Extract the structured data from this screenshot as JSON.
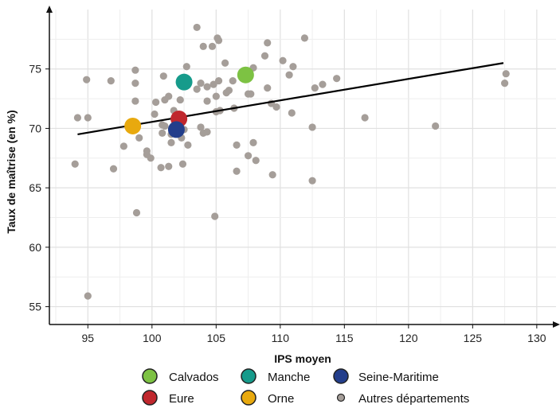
{
  "chart_data": {
    "type": "scatter",
    "xlabel": "IPS moyen",
    "ylabel": "Taux de maîtrise (en %)",
    "xlim": [
      92,
      131.5
    ],
    "ylim": [
      53.5,
      80
    ],
    "x_ticks": [
      95,
      100,
      105,
      110,
      115,
      120,
      125,
      130
    ],
    "y_ticks": [
      55,
      60,
      65,
      70,
      75
    ],
    "grid": true,
    "highlight": [
      {
        "name": "Calvados",
        "color": "#7dc243",
        "x": 107.3,
        "y": 74.5
      },
      {
        "name": "Manche",
        "color": "#169b8b",
        "x": 102.5,
        "y": 73.9
      },
      {
        "name": "Eure",
        "color": "#c0272d",
        "x": 102.1,
        "y": 70.8
      },
      {
        "name": "Orne",
        "color": "#e8a90e",
        "x": 98.5,
        "y": 70.2
      },
      {
        "name": "Seine-Maritime",
        "color": "#233e8b",
        "x": 101.9,
        "y": 69.9
      }
    ],
    "others": {
      "name": "Autres départements",
      "color": "#a59e99",
      "points": [
        [
          94.0,
          67.0
        ],
        [
          94.2,
          70.9
        ],
        [
          94.9,
          74.1
        ],
        [
          95.0,
          70.9
        ],
        [
          95.0,
          55.9
        ],
        [
          96.8,
          74.0
        ],
        [
          97.0,
          66.6
        ],
        [
          97.8,
          68.5
        ],
        [
          98.7,
          74.9
        ],
        [
          98.7,
          73.8
        ],
        [
          98.7,
          72.3
        ],
        [
          98.8,
          62.9
        ],
        [
          99.0,
          69.2
        ],
        [
          99.6,
          68.1
        ],
        [
          99.6,
          67.8
        ],
        [
          99.9,
          67.5
        ],
        [
          100.2,
          71.2
        ],
        [
          100.3,
          72.2
        ],
        [
          100.7,
          66.7
        ],
        [
          100.8,
          70.3
        ],
        [
          100.8,
          69.6
        ],
        [
          100.9,
          74.4
        ],
        [
          101.0,
          72.4
        ],
        [
          101.0,
          70.2
        ],
        [
          101.3,
          66.8
        ],
        [
          101.3,
          72.7
        ],
        [
          101.5,
          69.5
        ],
        [
          101.5,
          68.8
        ],
        [
          101.7,
          71.5
        ],
        [
          102.0,
          70.9
        ],
        [
          102.2,
          72.4
        ],
        [
          102.3,
          69.2
        ],
        [
          102.4,
          67.0
        ],
        [
          102.5,
          69.9
        ],
        [
          102.7,
          75.2
        ],
        [
          102.8,
          68.6
        ],
        [
          103.5,
          78.5
        ],
        [
          103.5,
          73.3
        ],
        [
          103.8,
          73.8
        ],
        [
          103.8,
          70.1
        ],
        [
          104.0,
          76.9
        ],
        [
          104.0,
          69.6
        ],
        [
          104.3,
          73.5
        ],
        [
          104.3,
          72.3
        ],
        [
          104.3,
          69.7
        ],
        [
          104.7,
          76.9
        ],
        [
          104.8,
          73.7
        ],
        [
          104.9,
          62.6
        ],
        [
          105.0,
          72.7
        ],
        [
          105.0,
          71.4
        ],
        [
          105.1,
          77.6
        ],
        [
          105.2,
          77.4
        ],
        [
          105.2,
          74.0
        ],
        [
          105.3,
          71.5
        ],
        [
          105.7,
          75.5
        ],
        [
          105.8,
          73.0
        ],
        [
          106.0,
          73.2
        ],
        [
          106.3,
          74.0
        ],
        [
          106.4,
          71.7
        ],
        [
          106.6,
          68.6
        ],
        [
          106.6,
          66.4
        ],
        [
          107.5,
          72.9
        ],
        [
          107.5,
          67.7
        ],
        [
          107.7,
          72.9
        ],
        [
          107.9,
          75.1
        ],
        [
          107.9,
          68.8
        ],
        [
          108.1,
          67.3
        ],
        [
          108.8,
          76.1
        ],
        [
          109.0,
          77.2
        ],
        [
          109.0,
          73.4
        ],
        [
          109.3,
          72.1
        ],
        [
          109.4,
          66.1
        ],
        [
          109.7,
          71.8
        ],
        [
          110.2,
          75.7
        ],
        [
          110.7,
          74.5
        ],
        [
          110.9,
          71.3
        ],
        [
          111.0,
          75.2
        ],
        [
          111.9,
          77.6
        ],
        [
          112.5,
          70.1
        ],
        [
          112.5,
          65.6
        ],
        [
          112.7,
          73.4
        ],
        [
          113.3,
          73.7
        ],
        [
          114.4,
          74.2
        ],
        [
          116.6,
          70.9
        ],
        [
          122.1,
          70.2
        ],
        [
          127.6,
          74.6
        ],
        [
          127.5,
          73.8
        ]
      ]
    },
    "trendline": {
      "x": [
        94.2,
        127.4
      ],
      "y": [
        69.5,
        75.5
      ],
      "color": "#000000"
    }
  }
}
